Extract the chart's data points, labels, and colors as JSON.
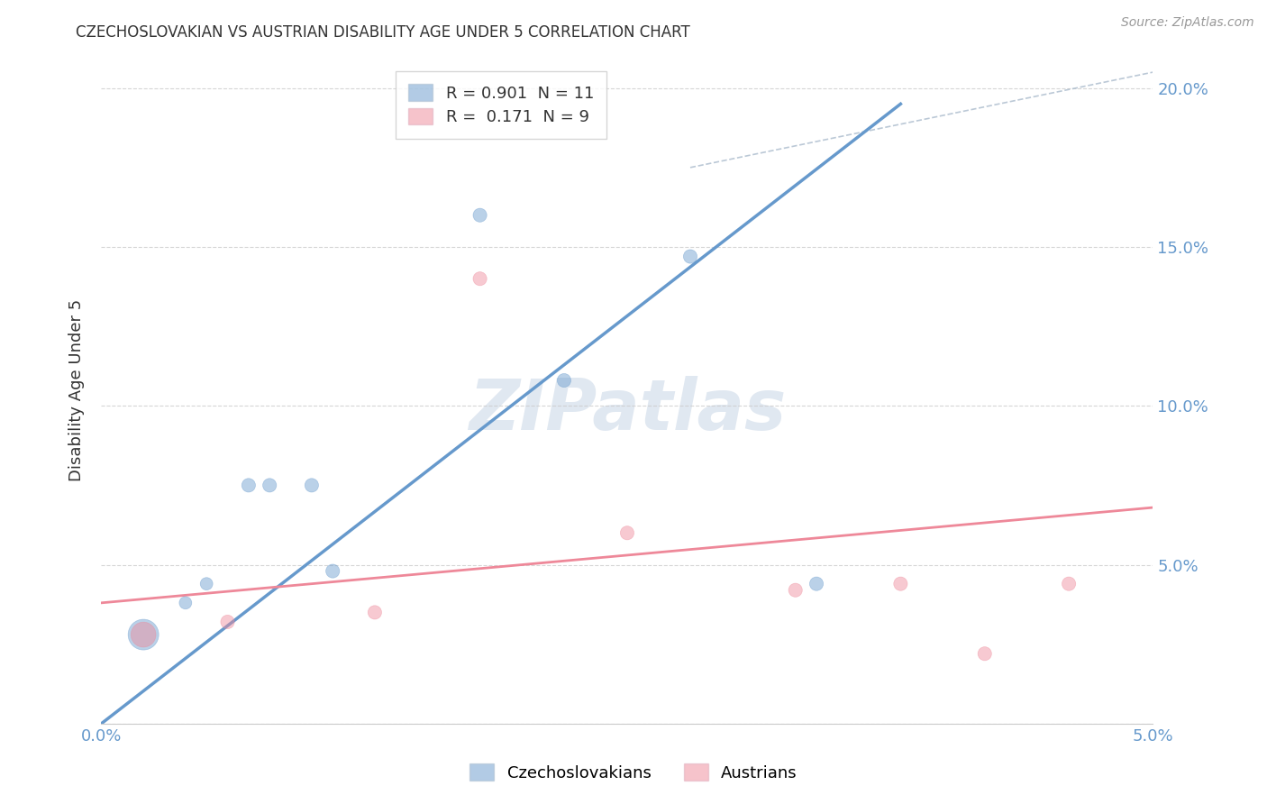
{
  "title": "CZECHOSLOVAKIAN VS AUSTRIAN DISABILITY AGE UNDER 5 CORRELATION CHART",
  "source": "Source: ZipAtlas.com",
  "ylabel": "Disability Age Under 5",
  "xlim": [
    0.0,
    0.05
  ],
  "ylim": [
    0.0,
    0.21
  ],
  "yticks": [
    0.0,
    0.05,
    0.1,
    0.15,
    0.2
  ],
  "ytick_labels": [
    "",
    "5.0%",
    "10.0%",
    "15.0%",
    "20.0%"
  ],
  "xticks": [
    0.0,
    0.01,
    0.02,
    0.03,
    0.04,
    0.05
  ],
  "xtick_labels": [
    "0.0%",
    "",
    "",
    "",
    "",
    "5.0%"
  ],
  "czech_color": "#6699cc",
  "austrian_color": "#ee8899",
  "czech_R": 0.901,
  "czech_N": 11,
  "austrian_R": 0.171,
  "austrian_N": 9,
  "czech_scatter_x": [
    0.002,
    0.004,
    0.005,
    0.007,
    0.008,
    0.01,
    0.011,
    0.018,
    0.022,
    0.028,
    0.034
  ],
  "czech_scatter_y": [
    0.028,
    0.038,
    0.044,
    0.075,
    0.075,
    0.075,
    0.048,
    0.16,
    0.108,
    0.147,
    0.044
  ],
  "czech_scatter_sizes": [
    600,
    100,
    100,
    120,
    120,
    120,
    120,
    120,
    120,
    120,
    120
  ],
  "austrian_scatter_x": [
    0.002,
    0.006,
    0.013,
    0.018,
    0.025,
    0.033,
    0.038,
    0.042,
    0.046
  ],
  "austrian_scatter_y": [
    0.028,
    0.032,
    0.035,
    0.14,
    0.06,
    0.042,
    0.044,
    0.022,
    0.044
  ],
  "austrian_scatter_sizes": [
    400,
    120,
    120,
    120,
    120,
    120,
    120,
    120,
    120
  ],
  "czech_line_x": [
    0.0,
    0.038
  ],
  "czech_line_y": [
    0.0,
    0.195
  ],
  "austrian_line_x": [
    0.0,
    0.05
  ],
  "austrian_line_y": [
    0.038,
    0.068
  ],
  "diag_line_x": [
    0.028,
    0.05
  ],
  "diag_line_y": [
    0.175,
    0.205
  ],
  "bg_color": "#ffffff",
  "tick_color": "#6699cc",
  "grid_color": "#cccccc",
  "title_color": "#333333",
  "watermark_text": "ZIPatlas"
}
